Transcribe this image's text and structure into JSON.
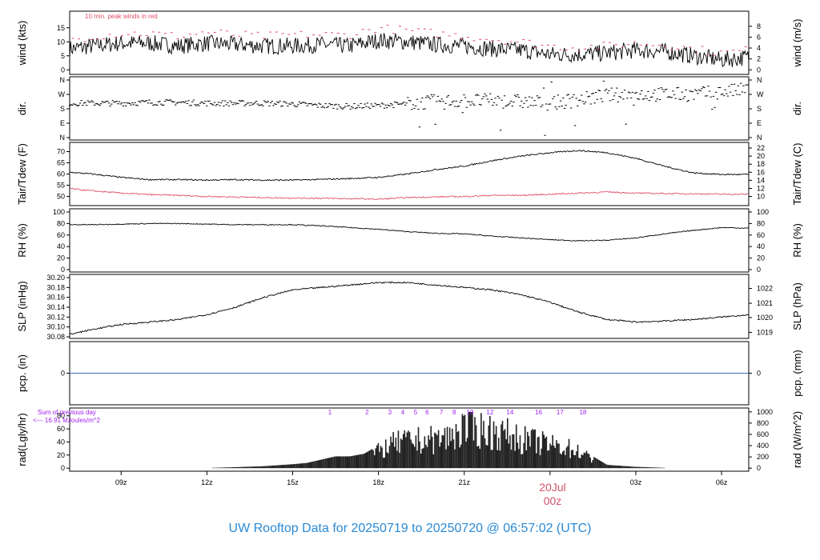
{
  "title": "UW Rooftop Data for 20250719  to  20250720 @ 06:57:02  (UTC)",
  "colors": {
    "title": "#2a8ad6",
    "peak": "#e0506a",
    "dewpoint": "#e0506a",
    "precip_line": "#3c6fc4",
    "annot_purple": "#a020f0",
    "date_label": "#d0506a",
    "series": "#000000"
  },
  "x_axis": {
    "tick_labels": [
      "09z",
      "12z",
      "15z",
      "18z",
      "21z",
      "00z",
      "03z",
      "06z"
    ],
    "tick_hours": [
      9,
      12,
      15,
      18,
      21,
      24,
      27,
      30
    ],
    "range_hours": [
      7.2,
      30.95
    ],
    "date_label": "20Jul",
    "date_sub": "00z"
  },
  "chart_data": [
    {
      "type": "line",
      "name": "wind",
      "ylabel": "wind (kts)",
      "y2label": "wind (m/s)",
      "left_ticks": [
        "0",
        "5",
        "10",
        "15"
      ],
      "left_tick_values": [
        0,
        5,
        10,
        15
      ],
      "right_ticks": [
        "0",
        "2",
        "4",
        "6",
        "8"
      ],
      "right_tick_values_kts": [
        0,
        3.89,
        7.78,
        11.66,
        15.55
      ],
      "ylim": [
        -0.5,
        19.5
      ],
      "annotation": "10 min. peak winds in red",
      "x": [
        7.2,
        8,
        9,
        10,
        11,
        12,
        13,
        14,
        15,
        16,
        17,
        18,
        19,
        20,
        21,
        22,
        23,
        24,
        25,
        26,
        27,
        28,
        29,
        30,
        30.95
      ],
      "values": [
        7.5,
        8.5,
        9.5,
        9.5,
        8.5,
        9.5,
        9,
        8.5,
        8.5,
        9,
        8.5,
        10.5,
        10,
        9,
        8.5,
        7.5,
        7,
        5.5,
        5.5,
        6,
        7,
        6.5,
        5,
        3.5,
        4.5
      ],
      "peak_values": [
        10.5,
        12,
        13,
        13,
        12,
        13.5,
        12.5,
        12,
        12.5,
        12.5,
        12.5,
        15,
        14,
        13,
        12,
        11,
        10,
        8.5,
        8,
        8.5,
        9.5,
        9,
        7.5,
        6,
        7
      ]
    },
    {
      "type": "scatter",
      "name": "direction",
      "ylabel": "dir.",
      "y2label": "dir.",
      "left_ticks": [
        "N",
        "E",
        "S",
        "W",
        "N"
      ],
      "left_tick_values": [
        0,
        90,
        180,
        270,
        360
      ],
      "right_ticks": [
        "N",
        "E",
        "S",
        "W",
        "N"
      ],
      "right_tick_values": [
        0,
        90,
        180,
        270,
        360
      ],
      "ylim": [
        0,
        360
      ],
      "x": [
        7.2,
        8,
        9,
        10,
        11,
        12,
        13,
        14,
        15,
        16,
        17,
        18,
        19,
        20,
        21,
        22,
        23,
        24,
        25,
        26,
        27,
        28,
        29,
        30,
        30.95
      ],
      "values": [
        215,
        215,
        215,
        220,
        220,
        215,
        215,
        215,
        210,
        200,
        195,
        200,
        210,
        225,
        230,
        230,
        225,
        215,
        235,
        265,
        270,
        270,
        270,
        285,
        300
      ]
    },
    {
      "type": "line",
      "name": "temperature",
      "ylabel": "Tair/Tdew (F)",
      "y2label": "Tair/Tdew (C)",
      "left_ticks": [
        "50",
        "55",
        "60",
        "65",
        "70"
      ],
      "left_tick_values": [
        50,
        55,
        60,
        65,
        70
      ],
      "right_ticks": [
        "10",
        "12",
        "14",
        "16",
        "18",
        "20",
        "22"
      ],
      "right_tick_values_f": [
        50,
        53.6,
        57.2,
        60.8,
        64.4,
        68,
        71.6
      ],
      "ylim": [
        47,
        71.6
      ],
      "x": [
        7.2,
        8,
        9,
        10,
        11,
        12,
        13,
        14,
        15,
        16,
        17,
        18,
        19,
        20,
        21,
        22,
        23,
        24,
        25,
        26,
        27,
        28,
        29,
        30,
        30.95
      ],
      "series": [
        {
          "name": "Tair",
          "values": [
            60.8,
            60,
            58.5,
            57.5,
            57.5,
            57.3,
            57.5,
            57.3,
            57.3,
            57.6,
            58,
            58.5,
            60,
            62,
            63.5,
            66,
            68,
            69.5,
            70.5,
            69.5,
            67,
            63.5,
            60.5,
            59.8,
            59.8
          ]
        },
        {
          "name": "Tdew",
          "values": [
            53.5,
            52.5,
            51.5,
            50.8,
            50.5,
            50,
            49.8,
            49.5,
            49.3,
            49.2,
            49,
            48.8,
            49.5,
            49.8,
            50,
            50.5,
            50.5,
            51,
            51.5,
            52,
            51.5,
            51.3,
            51.2,
            51,
            51
          ]
        }
      ]
    },
    {
      "type": "line",
      "name": "relative_humidity",
      "ylabel": "RH (%)",
      "y2label": "RH (%)",
      "left_ticks": [
        "0",
        "20",
        "40",
        "60",
        "80",
        "100"
      ],
      "left_tick_values": [
        0,
        20,
        40,
        60,
        80,
        100
      ],
      "right_ticks": [
        "0",
        "20",
        "40",
        "60",
        "80",
        "100"
      ],
      "right_tick_values": [
        0,
        20,
        40,
        60,
        80,
        100
      ],
      "ylim": [
        0,
        100
      ],
      "x": [
        7.2,
        8,
        9,
        10,
        11,
        12,
        13,
        14,
        15,
        16,
        17,
        18,
        19,
        20,
        21,
        22,
        23,
        24,
        25,
        26,
        27,
        28,
        29,
        30,
        30.95
      ],
      "values": [
        78,
        78,
        79,
        80,
        80,
        79,
        78,
        78,
        78,
        76,
        73,
        70,
        66,
        63,
        62,
        58,
        55,
        52,
        50,
        51,
        55,
        62,
        68,
        73,
        72
      ]
    },
    {
      "type": "line",
      "name": "sea_level_pressure",
      "ylabel": "SLP (inHg)",
      "y2label": "SLP (hPa)",
      "left_ticks": [
        "30.08",
        "30.10",
        "30.12",
        "30.14",
        "30.16",
        "30.18",
        "30.20"
      ],
      "left_tick_values": [
        30.08,
        30.1,
        30.12,
        30.14,
        30.16,
        30.18,
        30.2
      ],
      "right_ticks": [
        "1019",
        "1020",
        "1021",
        "1022"
      ],
      "right_tick_values_inhg": [
        30.089,
        30.119,
        30.148,
        30.178
      ],
      "ylim": [
        30.08,
        30.2
      ],
      "x": [
        7.2,
        8,
        9,
        10,
        11,
        12,
        13,
        14,
        15,
        16,
        17,
        18,
        19,
        20,
        21,
        22,
        23,
        24,
        25,
        26,
        27,
        28,
        29,
        30,
        30.95
      ],
      "values": [
        30.085,
        30.095,
        30.105,
        30.11,
        30.115,
        30.125,
        30.14,
        30.16,
        30.175,
        30.18,
        30.185,
        30.19,
        30.19,
        30.185,
        30.18,
        30.175,
        30.165,
        30.15,
        30.13,
        30.115,
        30.11,
        30.112,
        30.115,
        30.12,
        30.125
      ]
    },
    {
      "type": "line",
      "name": "precipitation",
      "ylabel": "pcp. (in)",
      "y2label": "pcp. (mm)",
      "left_ticks": [
        "0"
      ],
      "left_tick_values": [
        0
      ],
      "right_ticks": [
        "0"
      ],
      "right_tick_values": [
        0
      ],
      "ylim": [
        -1,
        1
      ],
      "x": [
        7.2,
        30.95
      ],
      "values": [
        0,
        0
      ]
    },
    {
      "type": "bar",
      "name": "radiation",
      "ylabel": "rad(Lgly/hr)",
      "y2label": "rad (W/m^2)",
      "left_ticks": [
        "0",
        "20",
        "40",
        "60",
        "80"
      ],
      "left_tick_values": [
        0,
        20,
        40,
        60,
        80
      ],
      "right_ticks": [
        "0",
        "200",
        "400",
        "600",
        "800",
        "1000"
      ],
      "right_tick_values_ly": [
        0,
        17.2,
        34.4,
        51.6,
        68.8,
        86
      ],
      "ylim": [
        -1,
        87
      ],
      "annotation_line1": "Sum of previous day",
      "annotation_line2": "<--- 16.91 MJoules/m^2",
      "hour_marks": [
        "1",
        "2",
        "3",
        "4",
        "5",
        "6",
        "7",
        "8",
        "10",
        "12",
        "14",
        "16",
        "17",
        "18"
      ],
      "hour_mark_x": [
        16.3,
        17.6,
        18.4,
        18.85,
        19.3,
        19.7,
        20.2,
        20.65,
        21.2,
        21.9,
        22.6,
        23.6,
        24.35,
        25.15
      ],
      "x": [
        12.2,
        13,
        14,
        15,
        15.5,
        16,
        16.5,
        17,
        17.5,
        18,
        18.5,
        19,
        19.5,
        20,
        20.5,
        21,
        21.5,
        22,
        22.5,
        23,
        23.5,
        24,
        24.5,
        25,
        25.5,
        26,
        27,
        28
      ],
      "values": [
        0.5,
        1.5,
        3,
        6,
        8,
        13,
        18,
        18,
        22,
        35,
        50,
        56,
        58,
        60,
        65,
        85,
        82,
        75,
        70,
        60,
        55,
        48,
        45,
        35,
        18,
        5,
        2,
        0.5
      ]
    }
  ]
}
